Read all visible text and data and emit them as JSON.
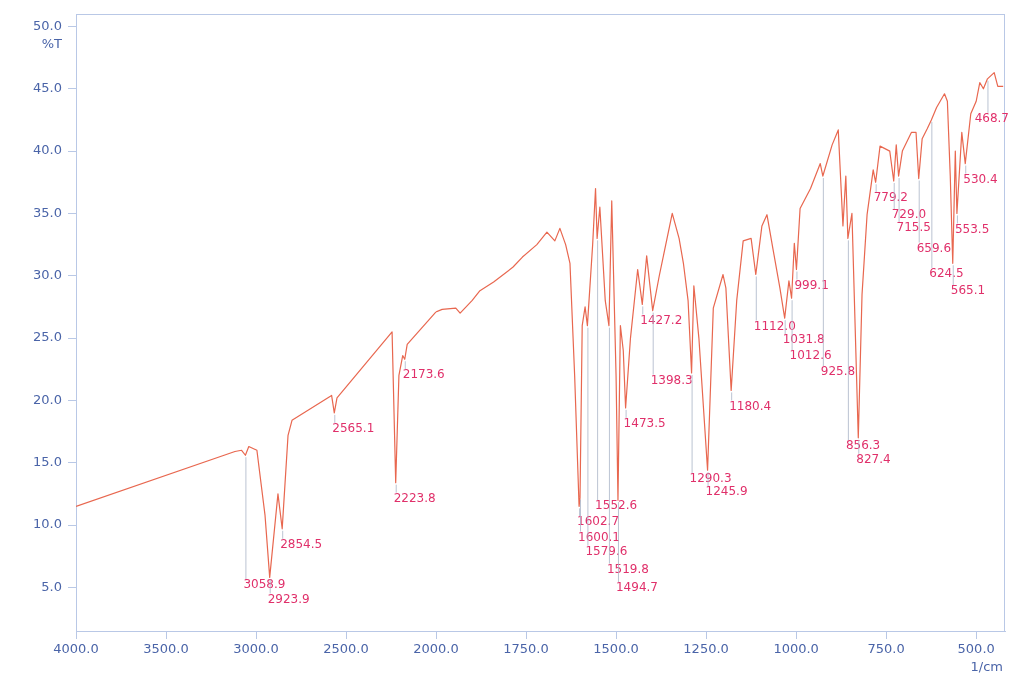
{
  "chart_data": [
    {
      "type": "line",
      "ylabel": "%T",
      "xlim": [
        4000,
        2000
      ],
      "ylim": [
        1.5,
        51
      ],
      "xticks": [
        {
          "value": 4000,
          "label": "4000.0"
        },
        {
          "value": 3500,
          "label": "3500.0"
        },
        {
          "value": 3000,
          "label": "3000.0"
        },
        {
          "value": 2500,
          "label": "2500.0"
        },
        {
          "value": 2000,
          "label": "2000.0"
        }
      ],
      "yticks": [
        {
          "value": 5,
          "label": "5.0"
        },
        {
          "value": 10,
          "label": "10.0"
        },
        {
          "value": 15,
          "label": "15.0"
        },
        {
          "value": 20,
          "label": "20.0"
        },
        {
          "value": 25,
          "label": "25.0"
        },
        {
          "value": 30,
          "label": "30.0"
        },
        {
          "value": 35,
          "label": "35.0"
        },
        {
          "value": 40,
          "label": "40.0"
        },
        {
          "value": 45,
          "label": "45.0"
        },
        {
          "value": 50,
          "label": "50.0"
        }
      ],
      "grid": false,
      "legend": false,
      "marker": "none",
      "line_style": "solid",
      "series": [
        {
          "color": "#e8674f",
          "x": [
            4000,
            3117,
            3080,
            3058.9,
            3040,
            2995,
            2950,
            2923.9,
            2878,
            2854.5,
            2822,
            2800,
            2580,
            2565.1,
            2550,
            2244,
            2223.8,
            2206,
            2185,
            2173.6,
            2160,
            2000
          ],
          "values": [
            11.5,
            15.9,
            16.0,
            15.6,
            16.3,
            16.0,
            10.8,
            5.8,
            12.5,
            9.7,
            17.2,
            18.4,
            20.4,
            19.0,
            20.2,
            25.5,
            13.4,
            22.0,
            23.6,
            23.3,
            24.5,
            27.1
          ]
        }
      ],
      "annotations": [
        {
          "text": "3058.9",
          "x": 3058.9,
          "y": 15.6
        },
        {
          "text": "2923.9",
          "x": 2923.9,
          "y": 5.8
        },
        {
          "text": "2854.5",
          "x": 2854.5,
          "y": 9.7
        },
        {
          "text": "2565.1",
          "x": 2565.1,
          "y": 19.0
        },
        {
          "text": "2223.8",
          "x": 2223.8,
          "y": 13.4
        },
        {
          "text": "2173.6",
          "x": 2173.6,
          "y": 23.3
        }
      ]
    },
    {
      "type": "line",
      "xlabel": "1/cm",
      "tick_labels": "x",
      "xlim": [
        2000,
        420
      ],
      "ylim": [
        1.5,
        51
      ],
      "xticks": [
        {
          "value": 1750,
          "label": "1750.0"
        },
        {
          "value": 1500,
          "label": "1500.0"
        },
        {
          "value": 1250,
          "label": "1250.0"
        },
        {
          "value": 1000,
          "label": "1000.0"
        },
        {
          "value": 750,
          "label": "750.0"
        },
        {
          "value": 500,
          "label": "500.0"
        }
      ],
      "grid": false,
      "legend": false,
      "marker": "none",
      "line_style": "solid",
      "series": [
        {
          "color": "#e8674f",
          "x": [
            2000,
            1983,
            1945,
            1933,
            1900,
            1878,
            1840,
            1786,
            1760,
            1720,
            1692,
            1670,
            1656,
            1640,
            1628,
            1615,
            1602.7,
            1600.1,
            1594,
            1586,
            1579.6,
            1565,
            1557,
            1552.6,
            1545,
            1530,
            1519.8,
            1512,
            1500,
            1494.7,
            1488,
            1480,
            1473.5,
            1460,
            1440,
            1427.2,
            1415,
            1398.3,
            1380,
            1344,
            1325,
            1313,
            1300,
            1290.3,
            1284,
            1270,
            1245.9,
            1230,
            1203,
            1195,
            1180.4,
            1165,
            1147,
            1125,
            1112.0,
            1095,
            1081,
            1064,
            1045,
            1031.8,
            1020,
            1012.6,
            1005,
            999.1,
            989,
            960,
            933,
            925.8,
            900,
            883,
            870,
            862,
            856.3,
            845,
            827.4,
            817,
            803,
            786,
            779.2,
            767,
            740,
            729.0,
            722,
            715.5,
            705,
            680,
            667,
            659.6,
            650,
            636,
            624.5,
            610,
            588,
            580,
            572,
            565.1,
            558,
            553.5,
            540,
            530.4,
            515,
            500,
            490,
            480,
            468.7,
            450,
            440,
            425
          ],
          "values": [
            27.1,
            27.3,
            27.4,
            27.0,
            28.0,
            28.8,
            29.5,
            30.7,
            31.5,
            32.5,
            33.5,
            32.8,
            33.8,
            32.5,
            31.0,
            22.0,
            11.5,
            12.2,
            26.0,
            27.5,
            26.0,
            32.5,
            37.0,
            33.0,
            35.5,
            28.0,
            26.0,
            36.0,
            22.0,
            12.0,
            26.0,
            24.0,
            19.4,
            25.0,
            30.5,
            27.7,
            31.6,
            27.2,
            30.0,
            35.0,
            33.0,
            31.0,
            28.0,
            22.2,
            29.2,
            25.0,
            14.4,
            27.4,
            30.1,
            29.0,
            20.8,
            28.0,
            32.8,
            33.0,
            30.1,
            34.0,
            34.9,
            32.1,
            29.0,
            26.6,
            29.6,
            28.2,
            32.6,
            30.5,
            35.4,
            37.0,
            39.0,
            38.0,
            40.5,
            41.7,
            34.0,
            38.0,
            33.0,
            35.0,
            17.0,
            28.5,
            34.9,
            38.5,
            37.5,
            40.4,
            40.0,
            37.6,
            40.5,
            38.0,
            40.0,
            41.5,
            41.5,
            37.8,
            41.0,
            41.8,
            42.5,
            43.5,
            44.6,
            44.0,
            38.0,
            31.0,
            40.0,
            35.0,
            41.5,
            39.0,
            43.0,
            44.0,
            45.5,
            45.0,
            45.8,
            46.3,
            45.2,
            45.2
          ]
        }
      ],
      "annotations": [
        {
          "text": "1602.7",
          "x": 1602.7,
          "y": 11.5
        },
        {
          "text": "1600.1",
          "x": 1600.1,
          "y": 12.2
        },
        {
          "text": "1579.6",
          "x": 1579.6,
          "y": 26.0
        },
        {
          "text": "1552.6",
          "x": 1552.6,
          "y": 33.0
        },
        {
          "text": "1519.8",
          "x": 1519.8,
          "y": 26.0
        },
        {
          "text": "1494.7",
          "x": 1494.7,
          "y": 12.0
        },
        {
          "text": "1473.5",
          "x": 1473.5,
          "y": 19.4
        },
        {
          "text": "1427.2",
          "x": 1427.2,
          "y": 27.7
        },
        {
          "text": "1398.3",
          "x": 1398.3,
          "y": 27.2
        },
        {
          "text": "1290.3",
          "x": 1290.3,
          "y": 22.2
        },
        {
          "text": "1245.9",
          "x": 1245.9,
          "y": 14.4
        },
        {
          "text": "1180.4",
          "x": 1180.4,
          "y": 20.8
        },
        {
          "text": "1112.0",
          "x": 1112.0,
          "y": 30.1
        },
        {
          "text": "1031.8",
          "x": 1031.8,
          "y": 26.6
        },
        {
          "text": "1012.6",
          "x": 1012.6,
          "y": 28.2
        },
        {
          "text": "999.1",
          "x": 999.1,
          "y": 30.5
        },
        {
          "text": "925.8",
          "x": 925.8,
          "y": 38.0
        },
        {
          "text": "856.3",
          "x": 856.3,
          "y": 33.0
        },
        {
          "text": "827.4",
          "x": 827.4,
          "y": 17.0
        },
        {
          "text": "779.2",
          "x": 779.2,
          "y": 37.5
        },
        {
          "text": "729.0",
          "x": 729.0,
          "y": 37.6
        },
        {
          "text": "715.5",
          "x": 715.5,
          "y": 38.0
        },
        {
          "text": "659.6",
          "x": 659.6,
          "y": 37.8
        },
        {
          "text": "624.5",
          "x": 624.5,
          "y": 42.5
        },
        {
          "text": "565.1",
          "x": 565.1,
          "y": 31.0
        },
        {
          "text": "553.5",
          "x": 553.5,
          "y": 35.0
        },
        {
          "text": "530.4",
          "x": 530.4,
          "y": 39.0
        },
        {
          "text": "468.7",
          "x": 468.7,
          "y": 45.8
        }
      ]
    }
  ]
}
